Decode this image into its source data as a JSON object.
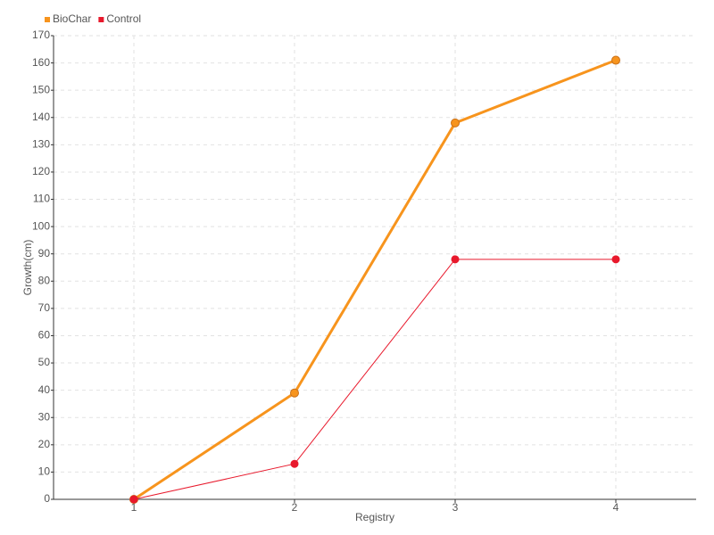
{
  "chart_data": {
    "type": "line",
    "xlabel": "Registry",
    "ylabel": "Growth(cm)",
    "categories": [
      "1",
      "2",
      "3",
      "4"
    ],
    "series": [
      {
        "name": "BioChar",
        "color": "#f7941d",
        "values": [
          0,
          39,
          138,
          161
        ]
      },
      {
        "name": "Control",
        "color": "#e8192c",
        "values": [
          0,
          13,
          88,
          88
        ]
      }
    ],
    "ylim": [
      0,
      170
    ],
    "yticks": [
      0,
      10,
      20,
      30,
      40,
      50,
      60,
      70,
      80,
      90,
      100,
      110,
      120,
      130,
      140,
      150,
      160,
      170
    ],
    "grid": true,
    "legend": "top-left"
  }
}
